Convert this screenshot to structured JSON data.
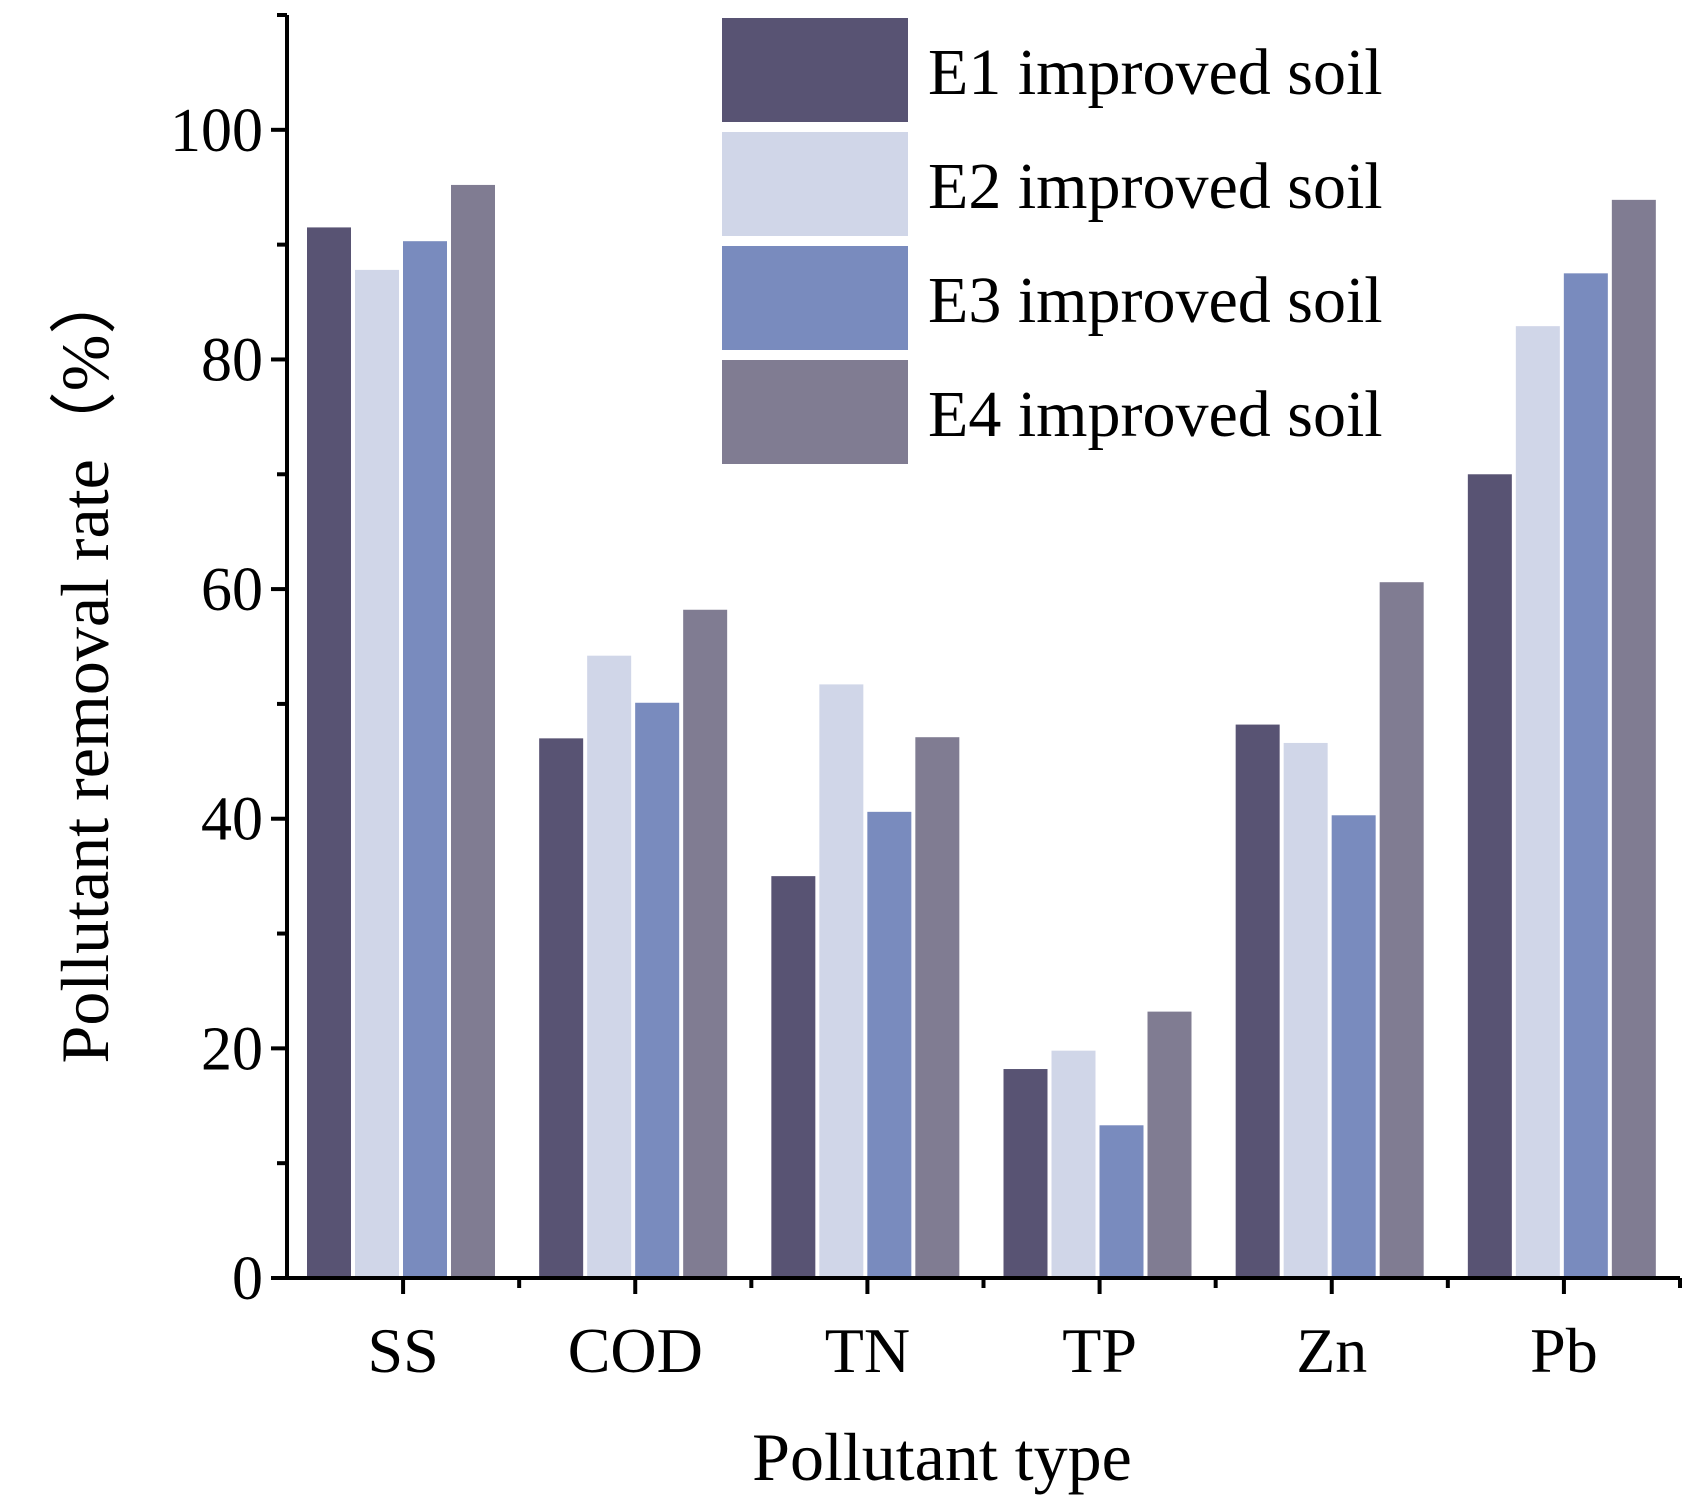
{
  "chart_data": {
    "type": "bar",
    "categories": [
      "SS",
      "COD",
      "TN",
      "TP",
      "Zn",
      "Pb"
    ],
    "series": [
      {
        "name": "E1 improved soil",
        "values": [
          91.5,
          47.0,
          35.0,
          18.2,
          48.2,
          70.0
        ]
      },
      {
        "name": "E2 improved soil",
        "values": [
          87.8,
          54.2,
          51.7,
          19.8,
          46.6,
          82.9
        ]
      },
      {
        "name": "E3 improved soil",
        "values": [
          90.3,
          50.1,
          40.6,
          13.3,
          40.3,
          87.5
        ]
      },
      {
        "name": "E4 improved soil",
        "values": [
          95.2,
          58.2,
          47.1,
          23.2,
          60.6,
          93.9
        ]
      }
    ],
    "xlabel": "Pollutant type",
    "ylabel": "Pollutant removal rate（%）",
    "ylim": [
      0,
      110
    ],
    "yticks": [
      0,
      20,
      40,
      60,
      80,
      100
    ],
    "grid": false,
    "legend_position": "top-center",
    "colors": [
      "#585373",
      "#d0d6e8",
      "#798bbe",
      "#807c92"
    ]
  }
}
